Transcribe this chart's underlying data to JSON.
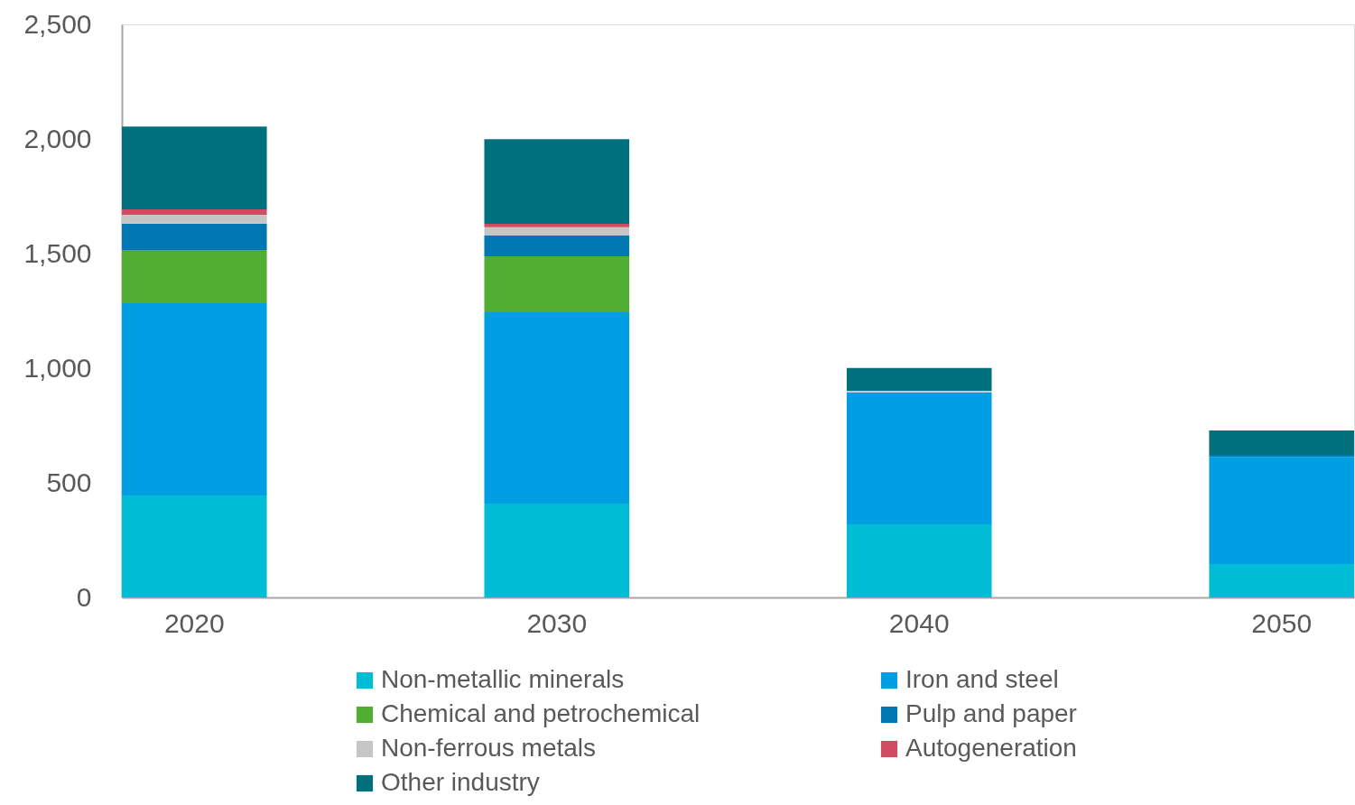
{
  "chart_data": {
    "type": "bar",
    "stacked": true,
    "categories": [
      "2020",
      "2030",
      "2040",
      "2050"
    ],
    "ylim": [
      0,
      2500
    ],
    "yticks": [
      0,
      {
        "value": 500,
        "label": "500"
      },
      {
        "value": 1000,
        "label": "1,000"
      },
      {
        "value": 1500,
        "label": "1,500"
      },
      {
        "value": 2000,
        "label": "2,000"
      },
      {
        "value": 2500,
        "label": "2,500"
      }
    ],
    "grid": false,
    "legend": "bottom",
    "series": [
      {
        "name": "Non-metallic minerals",
        "color": "#00bcd4",
        "values": [
          445,
          409,
          319,
          146
        ]
      },
      {
        "name": "Iron and steel",
        "color": "#009fe3",
        "values": [
          838,
          835,
          576,
          467
        ]
      },
      {
        "name": "Chemical and petrochemical",
        "color": "#52ae32",
        "values": [
          233,
          244,
          0,
          0
        ]
      },
      {
        "name": "Pulp and paper",
        "color": "#0079b3",
        "values": [
          115,
          91,
          0,
          9
        ]
      },
      {
        "name": "Non-ferrous metals",
        "color": "#c6c6c6",
        "values": [
          38,
          36,
          7,
          0
        ]
      },
      {
        "name": "Autogeneration",
        "color": "#d04c60",
        "values": [
          24,
          15,
          0,
          0
        ]
      },
      {
        "name": "Other industry",
        "color": "#00717c",
        "values": [
          361,
          369,
          99,
          106
        ]
      }
    ]
  }
}
